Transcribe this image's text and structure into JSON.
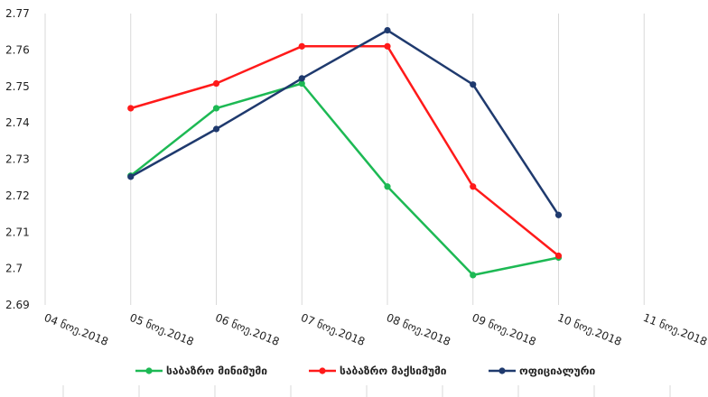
{
  "chart_data": {
    "type": "line",
    "title": "",
    "xlabel": "",
    "ylabel": "",
    "categories": [
      "04 ნოე.2018",
      "05 ნოე.2018",
      "06 ნოე.2018",
      "07 ნოე.2018",
      "08 ნოე.2018",
      "09 ნოე.2018",
      "10 ნოე.2018",
      "11 ნოე.2018"
    ],
    "ylim": [
      2.69,
      2.77
    ],
    "yticks": [
      2.69,
      2.7,
      2.71,
      2.72,
      2.73,
      2.74,
      2.75,
      2.76,
      2.77
    ],
    "ytick_labels": [
      "2.69",
      "2.7",
      "2.71",
      "2.72",
      "2.73",
      "2.74",
      "2.75",
      "2.76",
      "2.77"
    ],
    "grid": "vertical",
    "legend_position": "bottom",
    "series": [
      {
        "name": "საბაზრო მინიმუმი",
        "color": "#1db954",
        "values": [
          null,
          2.7255,
          2.744,
          2.7508,
          2.7225,
          2.6982,
          2.703,
          null
        ]
      },
      {
        "name": "საბაზრო მაქსიმუმი",
        "color": "#ff1a1a",
        "values": [
          null,
          2.744,
          2.7508,
          2.761,
          2.761,
          2.7225,
          2.7035,
          null
        ]
      },
      {
        "name": "ოფიციალური",
        "color": "#1f3a6e",
        "values": [
          null,
          2.7252,
          2.7383,
          2.7522,
          2.7654,
          2.7505,
          2.7147,
          null
        ]
      }
    ]
  }
}
